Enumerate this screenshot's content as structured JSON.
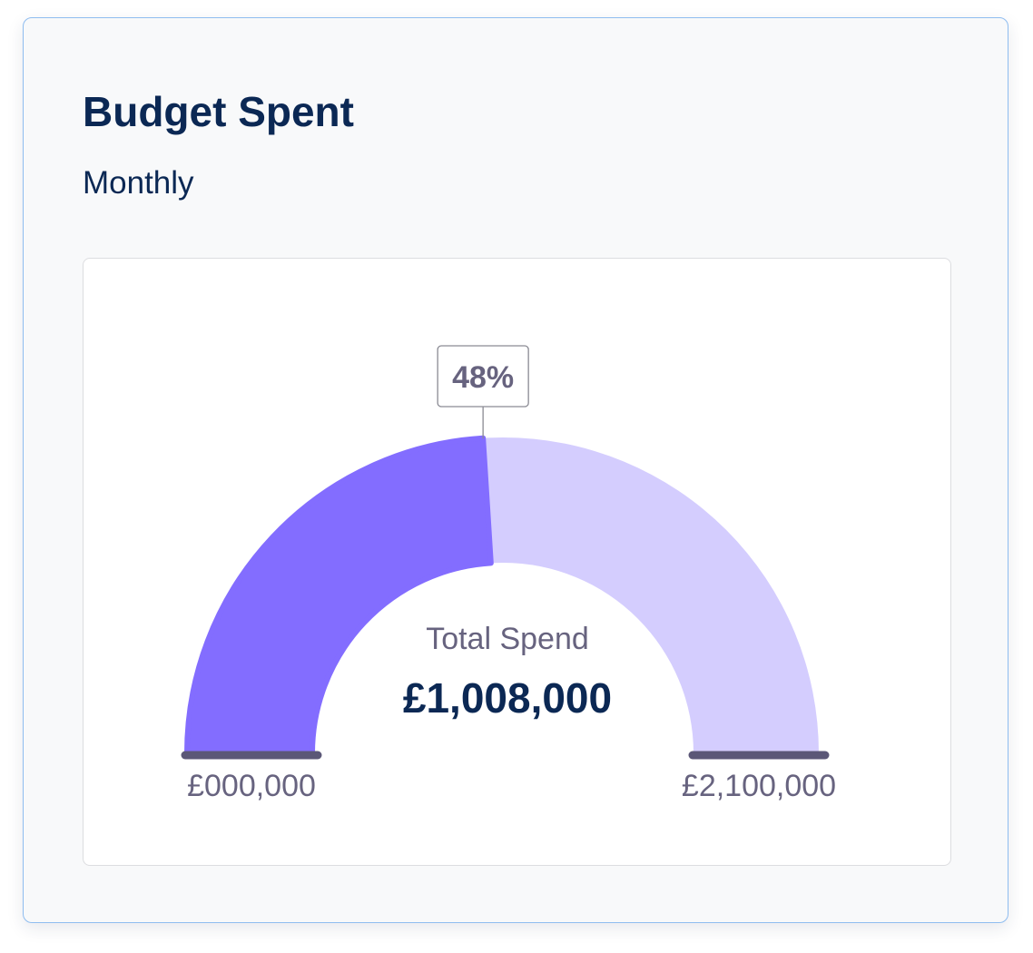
{
  "card": {
    "title": "Budget Spent",
    "subtitle": "Monthly"
  },
  "chart_data": {
    "type": "gauge",
    "title": "Budget Spent",
    "subtitle": "Monthly",
    "percent_label": "48%",
    "fraction": 0.48,
    "center_label": "Total Spend",
    "value_label": "£1,008,000",
    "value": 1008000,
    "min": 0,
    "max": 2100000,
    "min_label": "£000,000",
    "max_label": "£2,100,000"
  },
  "colors": {
    "filled_arc": "#836dff",
    "track_arc": "#d4cdfe",
    "baseline_ticks": "#5b5777",
    "label_grey": "#67637f",
    "value_navy": "#0b2854",
    "callout_border": "#8a8a93"
  }
}
